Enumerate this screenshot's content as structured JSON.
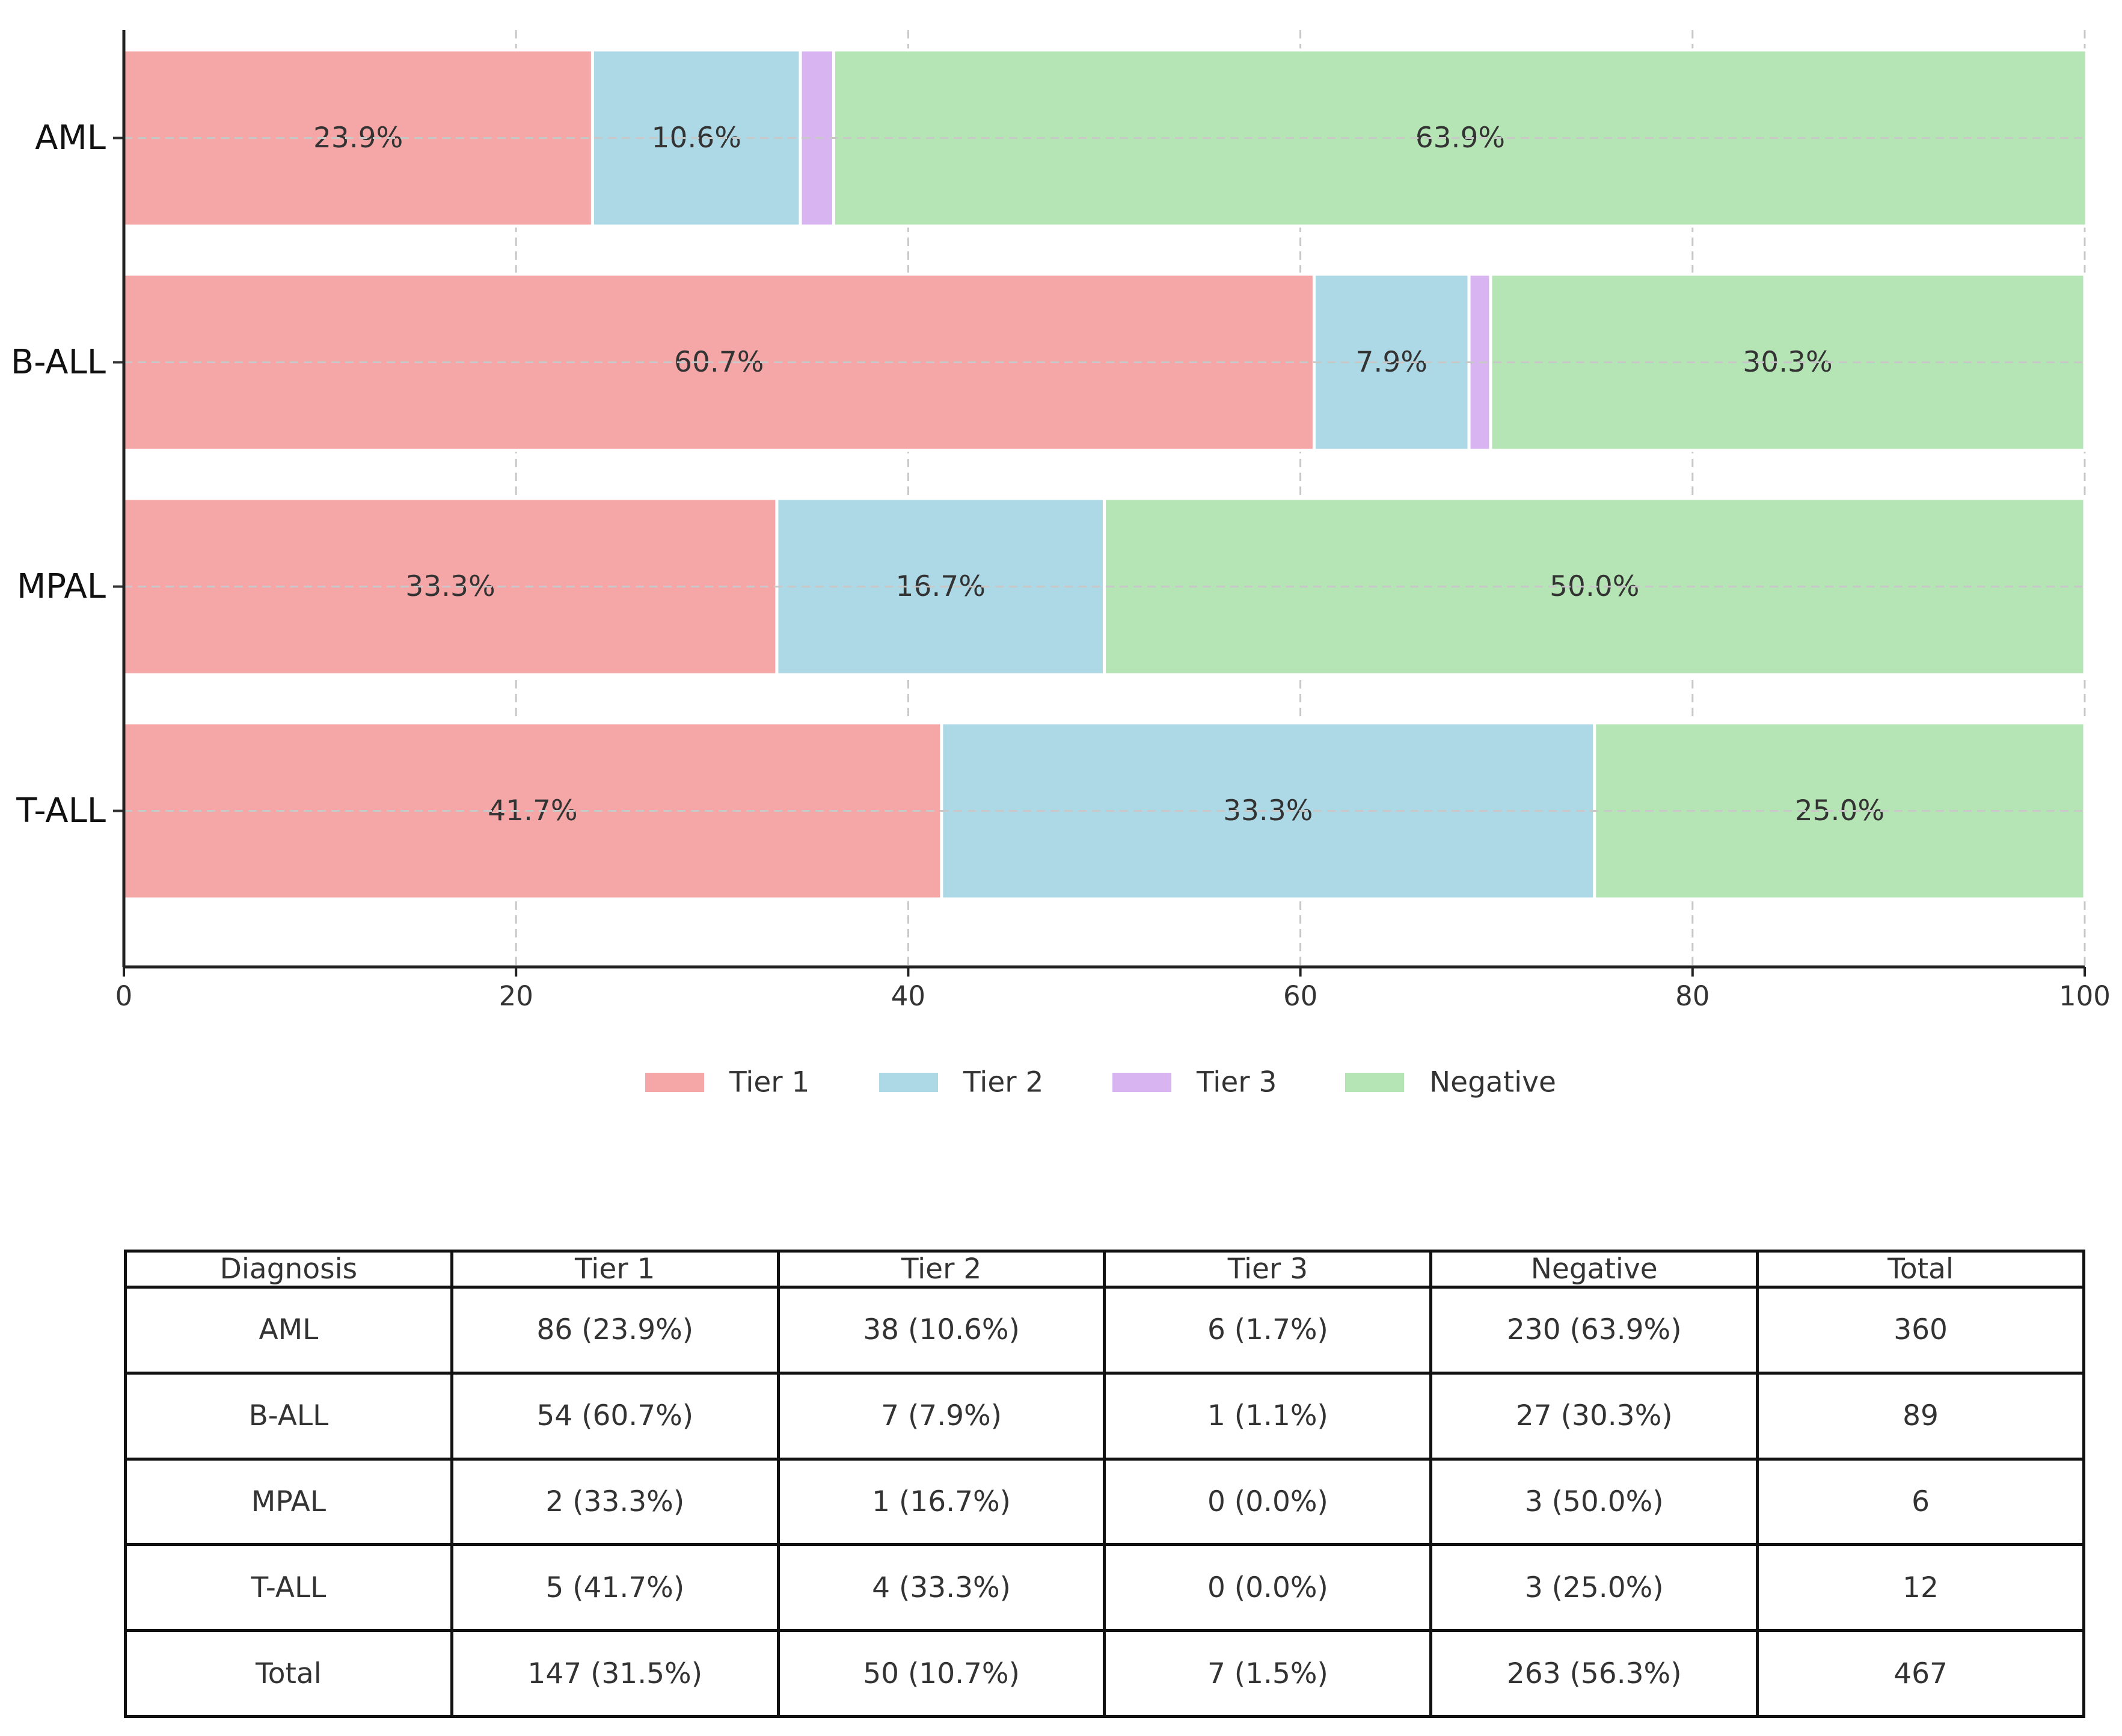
{
  "chart_data": {
    "type": "bar",
    "orientation": "horizontal",
    "stacked": true,
    "categories": [
      "AML",
      "B-ALL",
      "MPAL",
      "T-ALL"
    ],
    "series": [
      {
        "name": "Tier 1",
        "color": "#f5a6a6",
        "values": [
          23.9,
          60.7,
          33.3,
          41.7
        ],
        "labels": [
          "23.9%",
          "60.7%",
          "33.3%",
          "41.7%"
        ]
      },
      {
        "name": "Tier 2",
        "color": "#add8e6",
        "values": [
          10.6,
          7.9,
          16.7,
          33.3
        ],
        "labels": [
          "10.6%",
          "7.9%",
          "16.7%",
          "33.3%"
        ]
      },
      {
        "name": "Tier 3",
        "color": "#d8b4f0",
        "values": [
          1.7,
          1.1,
          0.0,
          0.0
        ],
        "labels": [
          "",
          "",
          "",
          ""
        ]
      },
      {
        "name": "Negative",
        "color": "#b5e4b5",
        "values": [
          63.9,
          30.3,
          50.0,
          25.0
        ],
        "labels": [
          "63.9%",
          "30.3%",
          "50.0%",
          "25.0%"
        ]
      }
    ],
    "xlim": [
      0,
      100
    ],
    "xticks": [
      0,
      20,
      40,
      60,
      80,
      100
    ],
    "xtick_labels": [
      "0",
      "20",
      "40",
      "60",
      "80",
      "100"
    ],
    "grid": true,
    "legend_position": "bottom-center",
    "title": "",
    "xlabel": "",
    "ylabel": ""
  },
  "table": {
    "headers": [
      "Diagnosis",
      "Tier 1",
      "Tier 2",
      "Tier 3",
      "Negative",
      "Total"
    ],
    "rows": [
      [
        "AML",
        "86 (23.9%)",
        "38 (10.6%)",
        "6 (1.7%)",
        "230 (63.9%)",
        "360"
      ],
      [
        "B-ALL",
        "54 (60.7%)",
        "7 (7.9%)",
        "1 (1.1%)",
        "27 (30.3%)",
        "89"
      ],
      [
        "MPAL",
        "2 (33.3%)",
        "1 (16.7%)",
        "0 (0.0%)",
        "3 (50.0%)",
        "6"
      ],
      [
        "T-ALL",
        "5 (41.7%)",
        "4 (33.3%)",
        "0 (0.0%)",
        "3 (25.0%)",
        "12"
      ],
      [
        "Total",
        "147 (31.5%)",
        "50 (10.7%)",
        "7 (1.5%)",
        "263 (56.3%)",
        "467"
      ]
    ]
  }
}
